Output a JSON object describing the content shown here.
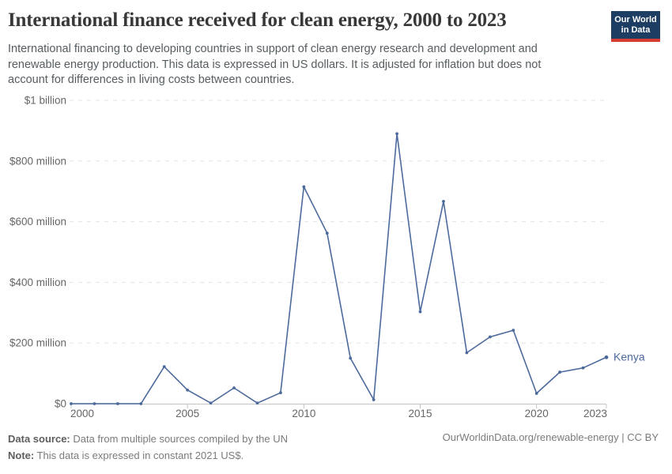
{
  "header": {
    "title": "International finance received for clean energy, 2000 to 2023",
    "subtitle": "International financing to developing countries in support of clean energy research and development and renewable energy production. This data is expressed in US dollars. It is adjusted for inflation but does not account for differences in living costs between countries.",
    "logo": {
      "line1": "Our World",
      "line2": "in Data",
      "bg": "#1d3d63",
      "accent": "#d73c34"
    }
  },
  "chart_data": {
    "type": "line",
    "title": "International finance received for clean energy, 2000 to 2023",
    "unit": "constant 2021 US$",
    "values_unit": "US$ million",
    "x": [
      2000,
      2001,
      2002,
      2003,
      2004,
      2005,
      2006,
      2007,
      2008,
      2009,
      2010,
      2011,
      2012,
      2013,
      2014,
      2015,
      2016,
      2017,
      2018,
      2019,
      2020,
      2021,
      2022,
      2023
    ],
    "series": [
      {
        "name": "Kenya",
        "color": "#4c6a9c",
        "values": [
          0,
          0,
          0,
          0,
          122,
          45,
          2,
          52,
          2,
          36,
          715,
          562,
          150,
          13,
          890,
          303,
          667,
          168,
          220,
          242,
          34,
          104,
          118,
          153
        ]
      }
    ],
    "ylim": [
      0,
      1000
    ],
    "y_ticks": [
      {
        "value": 0,
        "label": "$0"
      },
      {
        "value": 200,
        "label": "$200 million"
      },
      {
        "value": 400,
        "label": "$400 million"
      },
      {
        "value": 600,
        "label": "$600 million"
      },
      {
        "value": 800,
        "label": "$800 million"
      },
      {
        "value": 1000,
        "label": "$1 billion"
      }
    ],
    "x_ticks": [
      2000,
      2005,
      2010,
      2015,
      2020,
      2023
    ],
    "grid": "horizontal-dashed",
    "legend_position": "end-of-line-label",
    "colors": {
      "grid": "#e3e3e3",
      "axis": "#c4c4c4",
      "tick_text": "#666666"
    }
  },
  "footer": {
    "source_label": "Data source:",
    "source_text": " Data from multiple sources compiled by the UN",
    "note_label": "Note:",
    "note_text": " This data is expressed in constant 2021 US$.",
    "credit": "OurWorldinData.org/renewable-energy | CC BY"
  }
}
